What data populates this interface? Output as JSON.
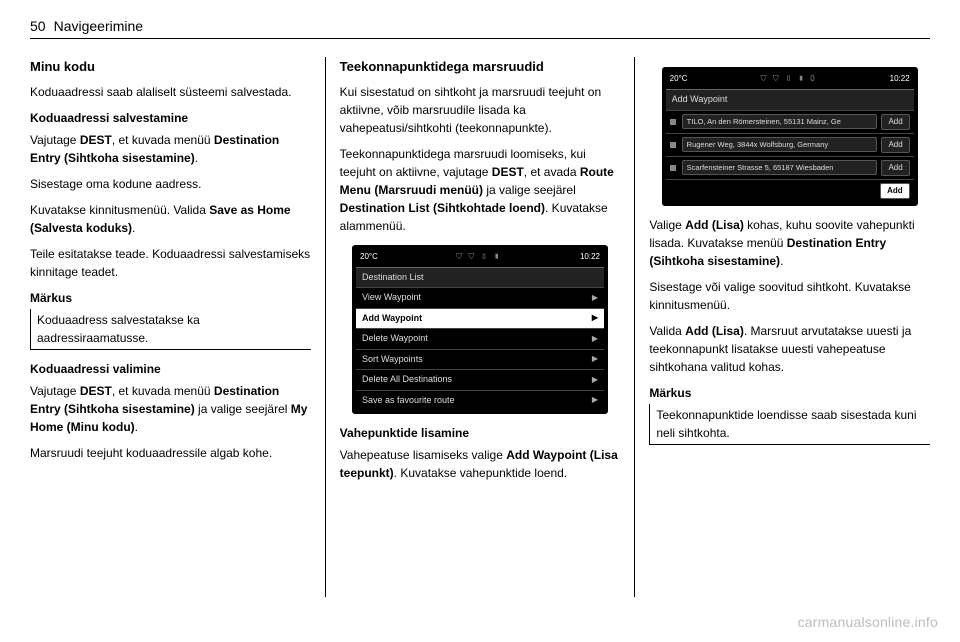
{
  "page_header": {
    "number": "50",
    "section": "Navigeerimine"
  },
  "col1": {
    "h1": "Minu kodu",
    "p1": "Koduaadressi saab alaliselt süsteemi salvestada.",
    "h2": "Koduaadressi salvestamine",
    "p2a": "Vajutage ",
    "p2b": "DEST",
    "p2c": ", et kuvada menüü ",
    "p2d": "Destination Entry (Sihtkoha sisestamine)",
    "p2e": ".",
    "p3": "Sisestage oma kodune aadress.",
    "p4a": "Kuvatakse kinnitusmenüü. Valida ",
    "p4b": "Save as Home (Salvesta koduks)",
    "p4c": ".",
    "p5": "Teile esitatakse teade. Koduaadressi salvestamiseks kinnitage teadet.",
    "note_title": "Märkus",
    "note_body": "Koduaadress salvestatakse ka aadressiraamatusse.",
    "h3": "Koduaadressi valimine",
    "p6a": "Vajutage ",
    "p6b": "DEST",
    "p6c": ", et kuvada menüü ",
    "p6d": "Destination Entry (Sihtkoha sisestamine)",
    "p6e": " ja valige seejärel ",
    "p6f": "My Home (Minu kodu)",
    "p6g": ".",
    "p7": "Marsruudi teejuht koduaadressile algab kohe."
  },
  "col2": {
    "h1": "Teekonnapunktidega marsruudid",
    "p1": "Kui sisestatud on sihtkoht ja marsruudi teejuht on aktiivne, võib marsruudile lisada ka vahepeatusi/sihtkohti (teekonnapunkte).",
    "p2a": "Teekonnapunktidega marsruudi loomiseks, kui teejuht on aktiivne, vajutage ",
    "p2b": "DEST",
    "p2c": ", et avada ",
    "p2d": "Route Menu (Marsruudi menüü)",
    "p2e": " ja valige seejärel ",
    "p2f": "Destination List (Sihtkohtade loend)",
    "p2g": ". Kuvatakse alammenüü.",
    "screen1": {
      "top_left": "20°C",
      "top_right": "10:22",
      "top_icons": "⛉ ⛉ ▯ ▮",
      "title": "Destination List",
      "rows": [
        {
          "label": "View Waypoint",
          "highlight": false
        },
        {
          "label": "Add Waypoint",
          "highlight": true
        },
        {
          "label": "Delete Waypoint",
          "highlight": false
        },
        {
          "label": "Sort Waypoints",
          "highlight": false
        },
        {
          "label": "Delete All Destinations",
          "highlight": false
        },
        {
          "label": "Save as favourite route",
          "highlight": false
        }
      ],
      "background": "#000000",
      "text_color": "#dddddd",
      "highlight_bg": "#ffffff",
      "highlight_fg": "#000000",
      "border_color": "#444444"
    },
    "h2": "Vahepunktide lisamine",
    "p3a": "Vahepeatuse lisamiseks valige ",
    "p3b": "Add Waypoint (Lisa teepunkt)",
    "p3c": ". Kuvatakse vahepunktide loend."
  },
  "col3": {
    "screen2": {
      "top_left": "20°C",
      "top_right": "10:22",
      "top_icons": "⛉ ⛉ ▯ ▮ 0",
      "title": "Add Waypoint",
      "addresses": [
        "TILO, An den Römersteinen, 55131 Mainz, Ge",
        "Rugener Weg, 3844x Wolfsburg, Germany",
        "Scarfensteiner Strasse 5, 65187 Wiesbaden"
      ],
      "add_label": "Add",
      "background": "#000000",
      "text_color": "#dddddd",
      "highlight_bg": "#ffffff",
      "highlight_fg": "#000000",
      "border_color": "#444444"
    },
    "p1a": "Valige ",
    "p1b": "Add (Lisa)",
    "p1c": " kohas, kuhu soovite vahepunkti lisada. Kuvatakse menüü ",
    "p1d": "Destination Entry (Sihtkoha sisestamine)",
    "p1e": ".",
    "p2": "Sisestage või valige soovitud sihtkoht. Kuvatakse kinnitusmenüü.",
    "p3a": "Valida ",
    "p3b": "Add (Lisa)",
    "p3c": ". Marsruut arvutatakse uuesti ja teekonnapunkt lisatakse uuesti vahepeatuse sihtkohana valitud kohas.",
    "note_title": "Märkus",
    "note_body": "Teekonnapunktide loendisse saab sisestada kuni neli sihtkohta."
  },
  "watermark": "carmanualsonline.info"
}
